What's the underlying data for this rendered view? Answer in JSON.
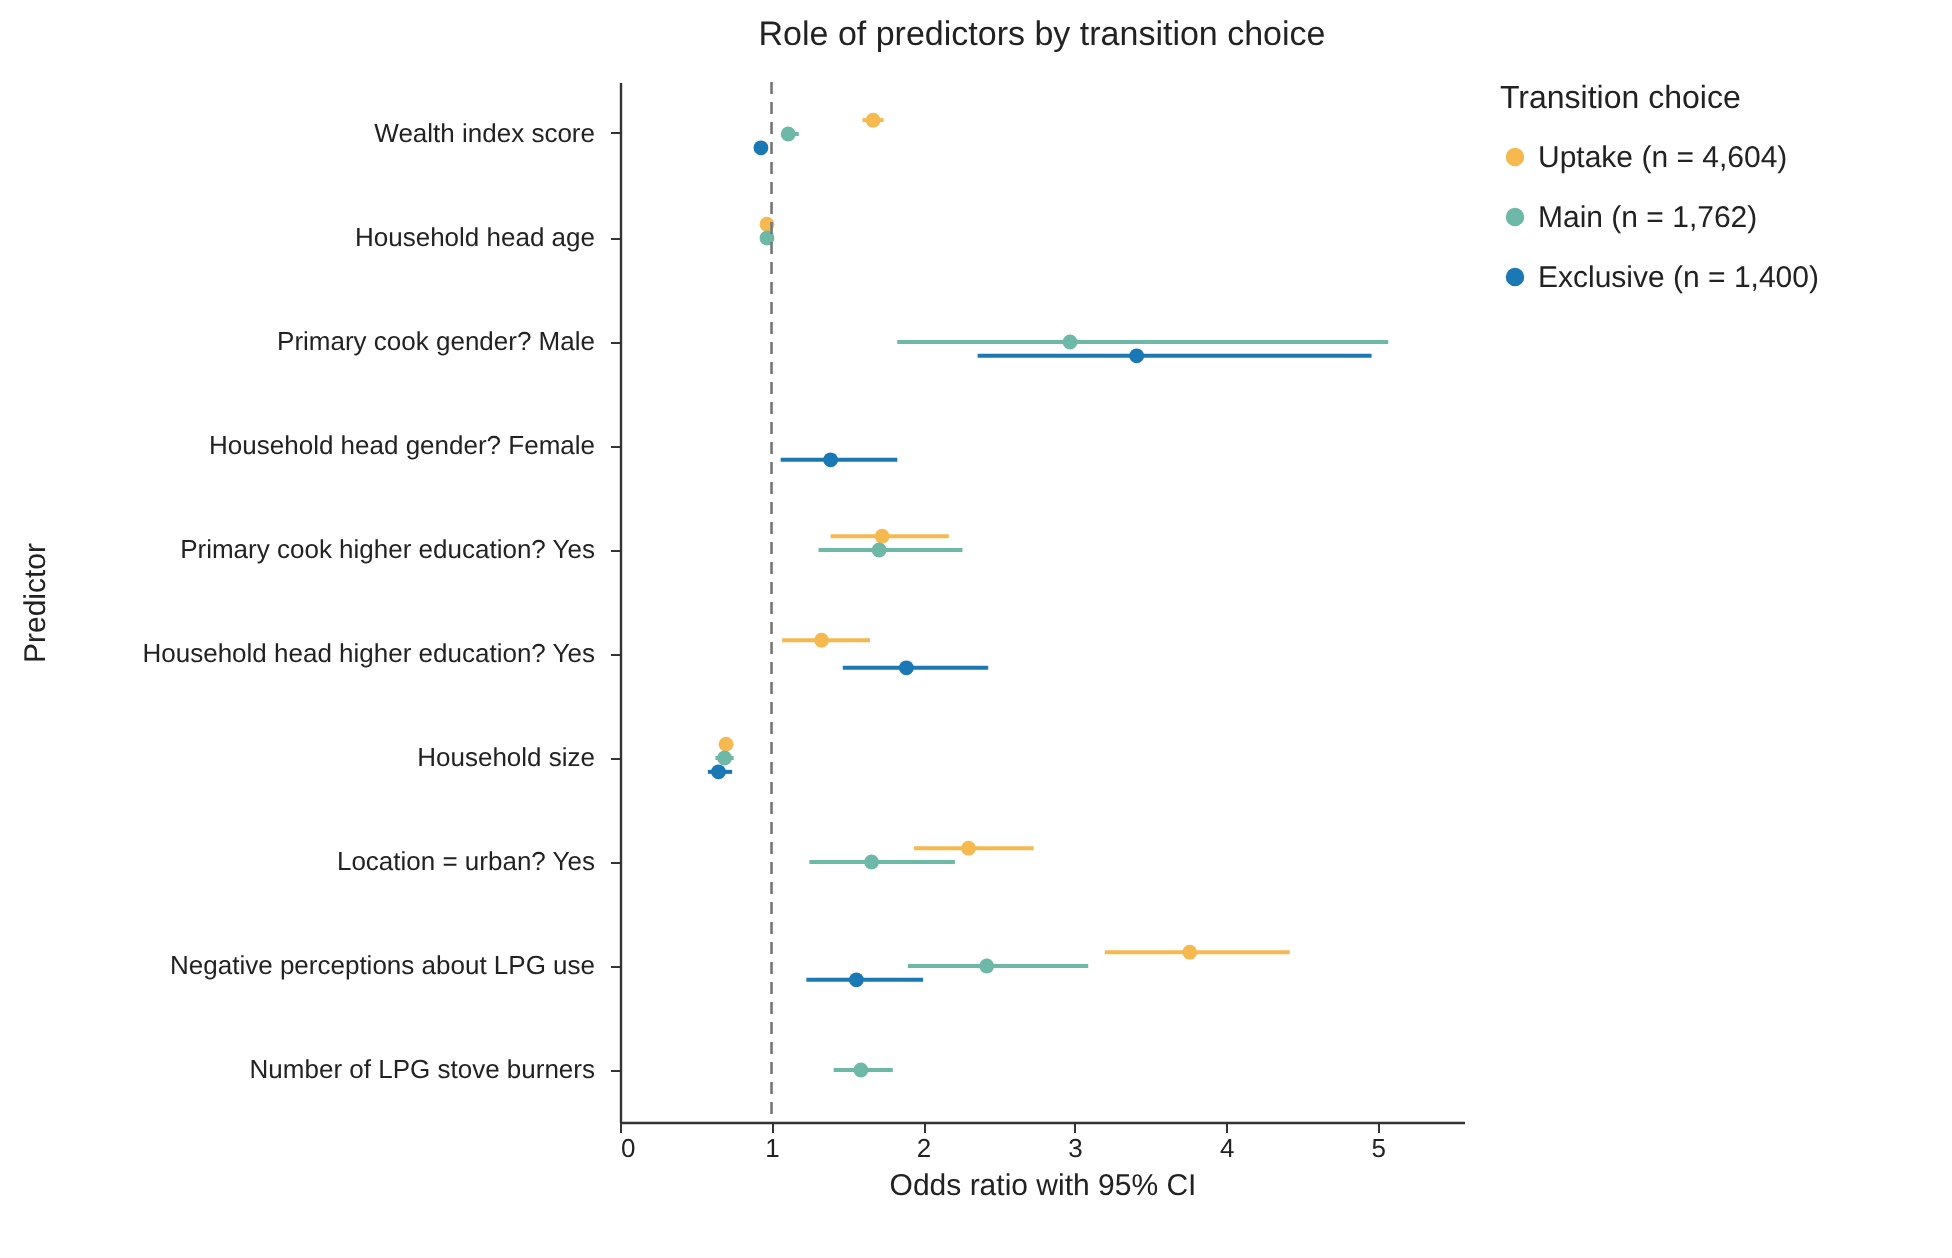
{
  "chart_data": {
    "type": "scatter",
    "orientation": "horizontal",
    "title": "Role of predictors by transition choice",
    "xlabel": "Odds ratio with 95% CI",
    "ylabel": "Predictor",
    "legend_title": "Transition choice",
    "legend": "right",
    "marker": "circle",
    "grid": false,
    "categories": [
      "Wealth index score",
      "Household head age",
      "Primary cook gender? Male",
      "Household head gender? Female",
      "Primary cook higher education? Yes",
      "Household head higher education? Yes",
      "Household size",
      "Location = urban? Yes",
      "Negative perceptions about LPG use",
      "Number of LPG stove burners"
    ],
    "xlim": [
      0,
      5.57
    ],
    "xticks": [
      0,
      1,
      2,
      3,
      4,
      5
    ],
    "ref_lines": [
      {
        "axis": "x",
        "value": 1,
        "color": "#777777",
        "line_style": "dashed"
      }
    ],
    "series": [
      {
        "name": "Uptake (n = 4,604)",
        "color": "#f5b94f",
        "values": [
          1.67,
          0.97,
          null,
          null,
          1.73,
          1.33,
          0.7,
          2.3,
          3.76,
          null
        ],
        "errors": [
          [
            1.6,
            1.74
          ],
          null,
          null,
          null,
          [
            1.39,
            2.17
          ],
          [
            1.07,
            1.65
          ],
          null,
          [
            1.94,
            2.73
          ],
          [
            3.2,
            4.42
          ],
          null
        ]
      },
      {
        "name": "Main (n = 1,762)",
        "color": "#6db8a6",
        "values": [
          1.11,
          0.97,
          2.97,
          null,
          1.71,
          null,
          0.69,
          1.66,
          2.42,
          1.59
        ],
        "errors": [
          [
            1.07,
            1.18
          ],
          null,
          [
            1.83,
            5.07
          ],
          null,
          [
            1.31,
            2.26
          ],
          null,
          [
            0.63,
            0.75
          ],
          [
            1.25,
            2.21
          ],
          [
            1.9,
            3.09
          ],
          [
            1.41,
            1.8
          ]
        ]
      },
      {
        "name": "Exclusive (n = 1,400)",
        "color": "#1a78b5",
        "values": [
          0.93,
          null,
          3.41,
          1.39,
          null,
          1.89,
          0.65,
          null,
          1.56,
          null
        ],
        "errors": [
          null,
          null,
          [
            2.36,
            4.96
          ],
          [
            1.06,
            1.83
          ],
          null,
          [
            1.47,
            2.43
          ],
          [
            0.58,
            0.74
          ],
          null,
          [
            1.23,
            2.0
          ],
          null
        ]
      }
    ]
  }
}
